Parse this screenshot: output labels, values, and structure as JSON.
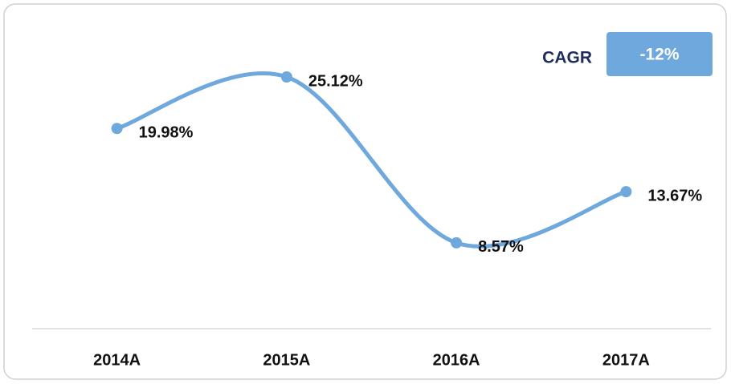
{
  "chart_data": {
    "type": "line",
    "categories": [
      "2014A",
      "2015A",
      "2016A",
      "2017A"
    ],
    "series": [
      {
        "color": "#6fa8dc",
        "values": [
          19.98,
          25.12,
          8.57,
          13.67
        ],
        "value_labels": [
          "19.98%",
          "25.12%",
          "8.57%",
          "13.67%"
        ]
      }
    ],
    "ylim": [
      0,
      30
    ],
    "annotation": {
      "label": "CAGR",
      "value": "-12%"
    }
  }
}
